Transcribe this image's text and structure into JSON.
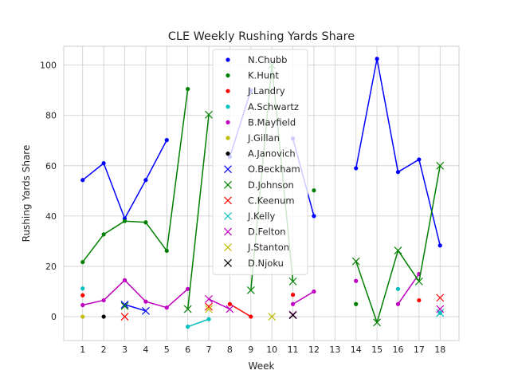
{
  "chart_data": {
    "type": "line",
    "title": "CLE Weekly Rushing Yards Share",
    "xlabel": "Week",
    "ylabel": "Rushing Yards Share",
    "x_ticks": [
      1,
      2,
      3,
      4,
      5,
      6,
      7,
      8,
      9,
      10,
      11,
      12,
      13,
      14,
      15,
      16,
      17,
      18
    ],
    "y_ticks": [
      0,
      20,
      40,
      60,
      80,
      100
    ],
    "xlim": [
      0.1,
      18.9
    ],
    "ylim": [
      -9.5,
      107.5
    ],
    "grid": true,
    "legend_position": "top-center",
    "series": [
      {
        "name": "N.Chubb",
        "color": "#0000ff",
        "marker": "dot",
        "points": [
          [
            1,
            54.3
          ],
          [
            2,
            61
          ],
          [
            3,
            39
          ],
          [
            4,
            54.3
          ],
          [
            5,
            70.2
          ],
          [
            6,
            null
          ],
          [
            7,
            null
          ],
          [
            8,
            63.5
          ],
          [
            9,
            90
          ],
          [
            10,
            null
          ],
          [
            11,
            70.8
          ],
          [
            12,
            40
          ],
          [
            13,
            null
          ],
          [
            14,
            59
          ],
          [
            15,
            102.5
          ],
          [
            16,
            57.5
          ],
          [
            17,
            62.5
          ],
          [
            18,
            28.3
          ]
        ]
      },
      {
        "name": "K.Hunt",
        "color": "#008000",
        "marker": "dot",
        "points": [
          [
            1,
            21.7
          ],
          [
            2,
            32.7
          ],
          [
            3,
            38
          ],
          [
            4,
            37.5
          ],
          [
            5,
            26.2
          ],
          [
            6,
            90.5
          ],
          [
            7,
            null
          ],
          [
            8,
            null
          ],
          [
            9,
            null
          ],
          [
            10,
            null
          ],
          [
            11,
            null
          ],
          [
            12,
            50.2
          ],
          [
            13,
            null
          ],
          [
            14,
            5
          ],
          [
            15,
            null
          ],
          [
            16,
            null
          ],
          [
            17,
            null
          ],
          [
            18,
            null
          ]
        ]
      },
      {
        "name": "J.Landry",
        "color": "#ff0000",
        "marker": "dot",
        "points": [
          [
            1,
            8.5
          ],
          [
            2,
            null
          ],
          [
            3,
            null
          ],
          [
            4,
            null
          ],
          [
            5,
            null
          ],
          [
            6,
            null
          ],
          [
            7,
            null
          ],
          [
            8,
            5
          ],
          [
            9,
            0
          ],
          [
            10,
            null
          ],
          [
            11,
            8.7
          ],
          [
            12,
            null
          ],
          [
            13,
            null
          ],
          [
            14,
            null
          ],
          [
            15,
            null
          ],
          [
            16,
            null
          ],
          [
            17,
            6.5
          ],
          [
            18,
            null
          ]
        ]
      },
      {
        "name": "A.Schwartz",
        "color": "#00bfbf",
        "marker": "dot",
        "points": [
          [
            1,
            11.2
          ],
          [
            2,
            null
          ],
          [
            3,
            null
          ],
          [
            4,
            null
          ],
          [
            5,
            null
          ],
          [
            6,
            -4
          ],
          [
            7,
            -1
          ],
          [
            8,
            null
          ],
          [
            9,
            null
          ],
          [
            10,
            null
          ],
          [
            11,
            null
          ],
          [
            12,
            null
          ],
          [
            13,
            null
          ],
          [
            14,
            null
          ],
          [
            15,
            null
          ],
          [
            16,
            11
          ],
          [
            17,
            null
          ],
          [
            18,
            1.5
          ]
        ]
      },
      {
        "name": "B.Mayfield",
        "color": "#bf00bf",
        "marker": "dot",
        "points": [
          [
            1,
            4.6
          ],
          [
            2,
            6.5
          ],
          [
            3,
            14.5
          ],
          [
            4,
            6
          ],
          [
            5,
            3.6
          ],
          [
            6,
            11
          ],
          [
            7,
            null
          ],
          [
            8,
            null
          ],
          [
            9,
            null
          ],
          [
            10,
            null
          ],
          [
            11,
            5
          ],
          [
            12,
            10
          ],
          [
            13,
            null
          ],
          [
            14,
            14.2
          ],
          [
            15,
            null
          ],
          [
            16,
            5
          ],
          [
            17,
            17
          ],
          [
            18,
            null
          ]
        ]
      },
      {
        "name": "J.Gillan",
        "color": "#bfbf00",
        "marker": "dot",
        "points": [
          [
            1,
            0
          ],
          [
            2,
            null
          ],
          [
            3,
            null
          ],
          [
            4,
            null
          ],
          [
            5,
            null
          ],
          [
            6,
            null
          ],
          [
            7,
            null
          ],
          [
            8,
            null
          ],
          [
            9,
            null
          ],
          [
            10,
            null
          ],
          [
            11,
            null
          ],
          [
            12,
            null
          ],
          [
            13,
            null
          ],
          [
            14,
            null
          ],
          [
            15,
            null
          ],
          [
            16,
            null
          ],
          [
            17,
            null
          ],
          [
            18,
            null
          ]
        ]
      },
      {
        "name": "A.Janovich",
        "color": "#000000",
        "marker": "dot",
        "points": [
          [
            1,
            null
          ],
          [
            2,
            0
          ],
          [
            3,
            null
          ],
          [
            4,
            null
          ],
          [
            5,
            null
          ],
          [
            6,
            null
          ],
          [
            7,
            null
          ],
          [
            8,
            null
          ],
          [
            9,
            null
          ],
          [
            10,
            null
          ],
          [
            11,
            null
          ],
          [
            12,
            null
          ],
          [
            13,
            null
          ],
          [
            14,
            null
          ],
          [
            15,
            null
          ],
          [
            16,
            null
          ],
          [
            17,
            null
          ],
          [
            18,
            null
          ]
        ]
      },
      {
        "name": "O.Beckham",
        "color": "#0000ff",
        "marker": "x",
        "points": [
          [
            1,
            null
          ],
          [
            2,
            null
          ],
          [
            3,
            4.8
          ],
          [
            4,
            2.3
          ],
          [
            5,
            null
          ],
          [
            6,
            null
          ],
          [
            7,
            null
          ],
          [
            8,
            null
          ],
          [
            9,
            null
          ],
          [
            10,
            null
          ],
          [
            11,
            null
          ],
          [
            12,
            null
          ],
          [
            13,
            null
          ],
          [
            14,
            null
          ],
          [
            15,
            null
          ],
          [
            16,
            null
          ],
          [
            17,
            null
          ],
          [
            18,
            null
          ]
        ]
      },
      {
        "name": "D.Johnson",
        "color": "#008000",
        "marker": "x",
        "points": [
          [
            1,
            null
          ],
          [
            2,
            null
          ],
          [
            3,
            4.2
          ],
          [
            4,
            null
          ],
          [
            5,
            null
          ],
          [
            6,
            3
          ],
          [
            7,
            80.3
          ],
          [
            8,
            null
          ],
          [
            9,
            10.5
          ],
          [
            10,
            100
          ],
          [
            11,
            14
          ],
          [
            12,
            null
          ],
          [
            13,
            null
          ],
          [
            14,
            22
          ],
          [
            15,
            -2.3
          ],
          [
            16,
            26.3
          ],
          [
            17,
            14
          ],
          [
            18,
            60
          ]
        ]
      },
      {
        "name": "C.Keenum",
        "color": "#ff0000",
        "marker": "x",
        "points": [
          [
            1,
            null
          ],
          [
            2,
            null
          ],
          [
            3,
            0
          ],
          [
            4,
            null
          ],
          [
            5,
            null
          ],
          [
            6,
            null
          ],
          [
            7,
            4
          ],
          [
            8,
            null
          ],
          [
            9,
            null
          ],
          [
            10,
            null
          ],
          [
            11,
            null
          ],
          [
            12,
            null
          ],
          [
            13,
            null
          ],
          [
            14,
            null
          ],
          [
            15,
            null
          ],
          [
            16,
            null
          ],
          [
            17,
            null
          ],
          [
            18,
            7.5
          ]
        ]
      },
      {
        "name": "J.Kelly",
        "color": "#00bfbf",
        "marker": "x",
        "points": [
          [
            1,
            null
          ],
          [
            2,
            null
          ],
          [
            3,
            null
          ],
          [
            4,
            null
          ],
          [
            5,
            null
          ],
          [
            6,
            null
          ],
          [
            7,
            null
          ],
          [
            8,
            null
          ],
          [
            9,
            null
          ],
          [
            10,
            null
          ],
          [
            11,
            null
          ],
          [
            12,
            null
          ],
          [
            13,
            null
          ],
          [
            14,
            null
          ],
          [
            15,
            null
          ],
          [
            16,
            null
          ],
          [
            17,
            null
          ],
          [
            18,
            1.5
          ]
        ]
      },
      {
        "name": "D.Felton",
        "color": "#bf00bf",
        "marker": "x",
        "points": [
          [
            1,
            null
          ],
          [
            2,
            null
          ],
          [
            3,
            null
          ],
          [
            4,
            null
          ],
          [
            5,
            null
          ],
          [
            6,
            null
          ],
          [
            7,
            7
          ],
          [
            8,
            3
          ],
          [
            9,
            null
          ],
          [
            10,
            null
          ],
          [
            11,
            0.8
          ],
          [
            12,
            null
          ],
          [
            13,
            null
          ],
          [
            14,
            null
          ],
          [
            15,
            null
          ],
          [
            16,
            null
          ],
          [
            17,
            null
          ],
          [
            18,
            3
          ]
        ]
      },
      {
        "name": "J.Stanton",
        "color": "#bfbf00",
        "marker": "x",
        "points": [
          [
            1,
            null
          ],
          [
            2,
            null
          ],
          [
            3,
            null
          ],
          [
            4,
            null
          ],
          [
            5,
            null
          ],
          [
            6,
            null
          ],
          [
            7,
            3
          ],
          [
            8,
            null
          ],
          [
            9,
            null
          ],
          [
            10,
            0
          ],
          [
            11,
            null
          ],
          [
            12,
            null
          ],
          [
            13,
            null
          ],
          [
            14,
            null
          ],
          [
            15,
            null
          ],
          [
            16,
            null
          ],
          [
            17,
            null
          ],
          [
            18,
            null
          ]
        ]
      },
      {
        "name": "D.Njoku",
        "color": "#000000",
        "marker": "x",
        "points": [
          [
            1,
            null
          ],
          [
            2,
            null
          ],
          [
            3,
            null
          ],
          [
            4,
            null
          ],
          [
            5,
            null
          ],
          [
            6,
            null
          ],
          [
            7,
            null
          ],
          [
            8,
            null
          ],
          [
            9,
            null
          ],
          [
            10,
            null
          ],
          [
            11,
            0.6
          ],
          [
            12,
            null
          ],
          [
            13,
            null
          ],
          [
            14,
            null
          ],
          [
            15,
            null
          ],
          [
            16,
            null
          ],
          [
            17,
            null
          ],
          [
            18,
            null
          ]
        ]
      }
    ]
  }
}
